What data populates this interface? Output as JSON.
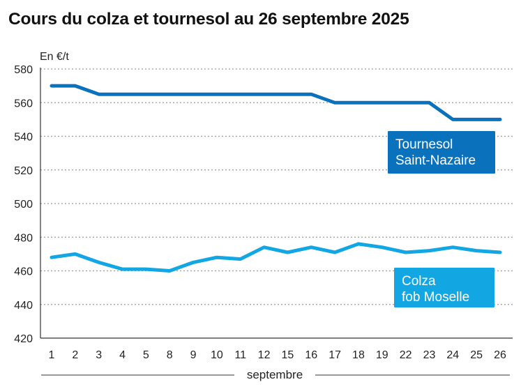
{
  "chart_data": {
    "type": "line",
    "title": "Cours du colza et tournesol au 26 septembre 2025",
    "ylabel": "En €/t",
    "xlabel": "septembre",
    "ylim": [
      420,
      580
    ],
    "yticks": [
      420,
      440,
      460,
      480,
      500,
      520,
      540,
      560,
      580
    ],
    "grid": true,
    "categories": [
      "1",
      "2",
      "3",
      "4",
      "5",
      "8",
      "9",
      "10",
      "11",
      "12",
      "15",
      "16",
      "17",
      "18",
      "19",
      "22",
      "23",
      "24",
      "25",
      "26"
    ],
    "series": [
      {
        "name": "Tournesol Saint-Nazaire",
        "label_lines": [
          "Tournesol",
          "Saint-Nazaire"
        ],
        "color": "#0a72bd",
        "values": [
          570,
          570,
          565,
          565,
          565,
          565,
          565,
          565,
          565,
          565,
          565,
          565,
          560,
          560,
          560,
          560,
          560,
          550,
          550,
          550
        ]
      },
      {
        "name": "Colza fob Moselle",
        "label_lines": [
          "Colza",
          "fob Moselle"
        ],
        "color": "#12a7e3",
        "values": [
          468,
          470,
          465,
          461,
          461,
          460,
          465,
          468,
          467,
          474,
          471,
          474,
          471,
          476,
          474,
          471,
          472,
          474,
          472,
          471
        ]
      }
    ]
  }
}
